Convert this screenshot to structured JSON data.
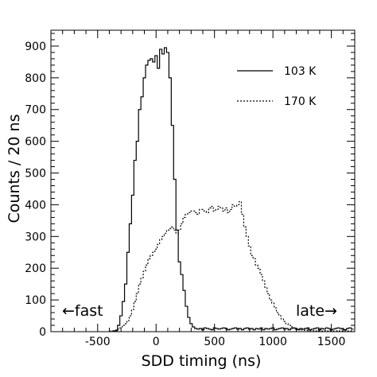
{
  "chart_data": {
    "type": "line",
    "xlabel": "SDD timing (ns)",
    "ylabel": "Counts / 20 ns",
    "xlim": [
      -900,
      1700
    ],
    "ylim": [
      0,
      950
    ],
    "x_ticks": [
      -500,
      0,
      500,
      1000,
      1500
    ],
    "y_ticks": [
      0,
      100,
      200,
      300,
      400,
      500,
      600,
      700,
      800,
      900
    ],
    "legend_position": "top-right",
    "annotations": {
      "left": "←fast",
      "right": "late→"
    },
    "series": [
      {
        "name": "103 K",
        "line_style": "solid",
        "step_width": 20,
        "x": [
          -360,
          -340,
          -320,
          -300,
          -280,
          -260,
          -240,
          -220,
          -200,
          -180,
          -160,
          -140,
          -120,
          -100,
          -80,
          -60,
          -40,
          -20,
          0,
          20,
          40,
          60,
          80,
          100,
          120,
          140,
          160,
          180,
          200,
          220,
          240,
          260,
          280,
          300,
          320,
          340,
          360,
          380,
          400,
          420,
          440,
          460,
          480,
          500,
          520,
          540,
          560,
          580,
          600,
          620,
          640,
          660,
          680,
          700,
          720,
          740,
          760,
          780,
          800,
          820,
          840,
          860,
          880,
          900,
          920,
          940,
          960,
          980,
          1000,
          1020,
          1040,
          1060,
          1080,
          1100,
          1120,
          1140,
          1160,
          1180,
          1200,
          1220,
          1240,
          1260,
          1280,
          1300,
          1320,
          1340,
          1360,
          1380,
          1400,
          1420,
          1440,
          1460,
          1480,
          1500,
          1520,
          1540,
          1560,
          1580,
          1600,
          1620,
          1640,
          1660,
          1680
        ],
        "values": [
          2,
          3,
          20,
          50,
          95,
          150,
          250,
          340,
          430,
          540,
          600,
          700,
          740,
          800,
          840,
          855,
          860,
          850,
          870,
          830,
          890,
          875,
          895,
          880,
          800,
          650,
          480,
          320,
          220,
          180,
          130,
          80,
          45,
          25,
          15,
          10,
          8,
          10,
          6,
          12,
          10,
          8,
          6,
          12,
          10,
          8,
          10,
          12,
          10,
          6,
          8,
          10,
          12,
          8,
          10,
          6,
          10,
          12,
          8,
          10,
          6,
          10,
          8,
          12,
          6,
          10,
          8,
          10,
          12,
          6,
          8,
          10,
          12,
          8,
          10,
          6,
          10,
          12,
          8,
          6,
          10,
          8,
          10,
          12,
          6,
          8,
          10,
          12,
          6,
          10,
          8,
          12,
          10,
          6,
          8,
          10,
          12,
          10,
          8,
          6,
          10,
          12,
          8
        ]
      },
      {
        "name": "170 K",
        "line_style": "dashed",
        "step_width": 20,
        "x": [
          -380,
          -360,
          -340,
          -320,
          -300,
          -280,
          -260,
          -240,
          -220,
          -200,
          -180,
          -160,
          -140,
          -120,
          -100,
          -80,
          -60,
          -40,
          -20,
          0,
          20,
          40,
          60,
          80,
          100,
          120,
          140,
          160,
          180,
          200,
          220,
          240,
          260,
          280,
          300,
          320,
          340,
          360,
          380,
          400,
          420,
          440,
          460,
          480,
          500,
          520,
          540,
          560,
          580,
          600,
          620,
          640,
          660,
          680,
          700,
          720,
          740,
          760,
          780,
          800,
          820,
          840,
          860,
          880,
          900,
          920,
          940,
          960,
          980,
          1000,
          1020,
          1040,
          1060,
          1080,
          1100,
          1120,
          1140,
          1160,
          1180,
          1200,
          1220,
          1240,
          1260,
          1280,
          1300,
          1320,
          1340,
          1360,
          1380,
          1400,
          1420,
          1440,
          1460,
          1480,
          1500,
          1520,
          1540,
          1560,
          1580,
          1600,
          1620,
          1640,
          1660,
          1680
        ],
        "values": [
          2,
          3,
          5,
          8,
          12,
          20,
          25,
          35,
          50,
          70,
          95,
          120,
          150,
          170,
          190,
          210,
          230,
          240,
          250,
          260,
          275,
          290,
          300,
          310,
          320,
          325,
          330,
          320,
          310,
          320,
          340,
          360,
          370,
          375,
          380,
          380,
          375,
          370,
          385,
          385,
          380,
          375,
          390,
          395,
          380,
          385,
          395,
          390,
          380,
          390,
          375,
          385,
          400,
          395,
          400,
          410,
          370,
          330,
          300,
          270,
          240,
          230,
          210,
          200,
          180,
          160,
          140,
          120,
          100,
          90,
          75,
          60,
          50,
          40,
          32,
          25,
          20,
          15,
          12,
          10,
          8,
          6,
          5,
          4,
          4,
          3,
          3,
          2,
          3,
          2,
          2,
          3,
          2,
          2,
          3,
          2,
          2,
          3,
          2,
          2,
          3,
          2,
          2,
          3
        ]
      }
    ]
  }
}
